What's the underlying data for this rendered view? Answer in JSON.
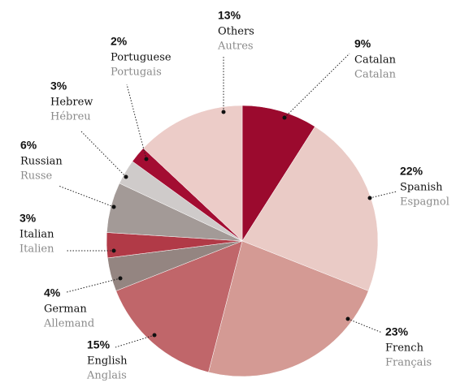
{
  "chart_data": {
    "type": "pie",
    "categories": [
      "Catalan",
      "Spanish",
      "French",
      "English",
      "German",
      "Italian",
      "Russian",
      "Hebrew",
      "Portuguese",
      "Others"
    ],
    "labels_fr": [
      "Catalan",
      "Espagnol",
      "Français",
      "Anglais",
      "Allemand",
      "Italien",
      "Russe",
      "Hébreu",
      "Portugais",
      "Autres"
    ],
    "values": [
      9,
      22,
      23,
      15,
      4,
      3,
      6,
      3,
      2,
      13
    ],
    "value_labels": [
      "9%",
      "22%",
      "23%",
      "15%",
      "4%",
      "3%",
      "6%",
      "3%",
      "2%",
      "13%"
    ],
    "colors": [
      "#9b0a2e",
      "#eacbc6",
      "#d49a94",
      "#c0666a",
      "#948581",
      "#b13a47",
      "#a39a97",
      "#cfcbca",
      "#a30d32",
      "#ecccc8"
    ]
  }
}
